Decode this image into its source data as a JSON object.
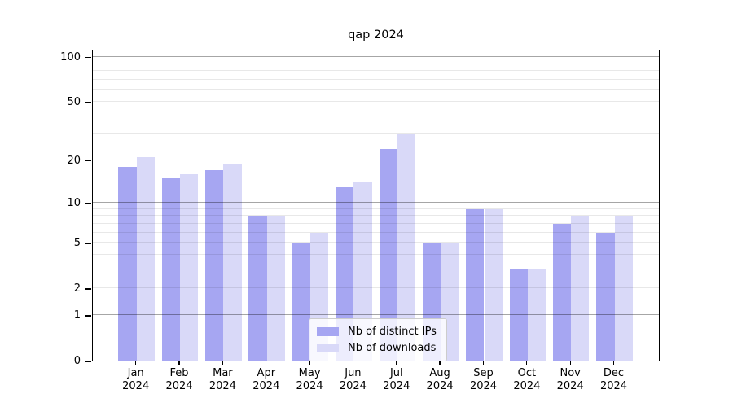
{
  "title": "qap 2024",
  "legend": {
    "items": [
      {
        "label": "Nb of distinct IPs",
        "color": "#a6a6f2"
      },
      {
        "label": "Nb of downloads",
        "color": "#d9d9f8"
      }
    ]
  },
  "y_axis": {
    "tick_labels": [
      "100",
      "50",
      "20",
      "10",
      "5",
      "2",
      "1",
      "0"
    ],
    "tick_values": [
      100,
      50,
      20,
      10,
      5,
      2,
      1,
      0
    ]
  },
  "x_axis": {
    "months": [
      {
        "label": "Jan",
        "year": "2024"
      },
      {
        "label": "Feb",
        "year": "2024"
      },
      {
        "label": "Mar",
        "year": "2024"
      },
      {
        "label": "Apr",
        "year": "2024"
      },
      {
        "label": "May",
        "year": "2024"
      },
      {
        "label": "Jun",
        "year": "2024"
      },
      {
        "label": "Jul",
        "year": "2024"
      },
      {
        "label": "Aug",
        "year": "2024"
      },
      {
        "label": "Sep",
        "year": "2024"
      },
      {
        "label": "Oct",
        "year": "2024"
      },
      {
        "label": "Nov",
        "year": "2024"
      },
      {
        "label": "Dec",
        "year": "2024"
      }
    ]
  },
  "chart_data": {
    "type": "bar",
    "title": "qap 2024",
    "xlabel": "",
    "ylabel": "",
    "categories": [
      "Jan 2024",
      "Feb 2024",
      "Mar 2024",
      "Apr 2024",
      "May 2024",
      "Jun 2024",
      "Jul 2024",
      "Aug 2024",
      "Sep 2024",
      "Oct 2024",
      "Nov 2024",
      "Dec 2024"
    ],
    "series": [
      {
        "name": "Nb of distinct IPs",
        "color": "#a6a6f2",
        "values": [
          18,
          15,
          17,
          8,
          5,
          13,
          24,
          5,
          9,
          3,
          7,
          6
        ]
      },
      {
        "name": "Nb of downloads",
        "color": "#d9d9f8",
        "values": [
          21,
          16,
          19,
          8,
          6,
          14,
          30,
          5,
          9,
          3,
          8,
          8
        ]
      }
    ],
    "yscale": "log10(1+v)",
    "ylim": [
      0,
      113
    ],
    "yticks": [
      0,
      1,
      2,
      5,
      10,
      20,
      50,
      100
    ],
    "grid": {
      "decade_values": [
        1,
        10,
        100
      ],
      "minor_values": [
        2,
        3,
        4,
        5,
        6,
        7,
        8,
        9,
        20,
        30,
        40,
        50,
        60,
        70,
        80,
        90
      ]
    },
    "legend_position": "lower-center",
    "grid_on": true
  }
}
